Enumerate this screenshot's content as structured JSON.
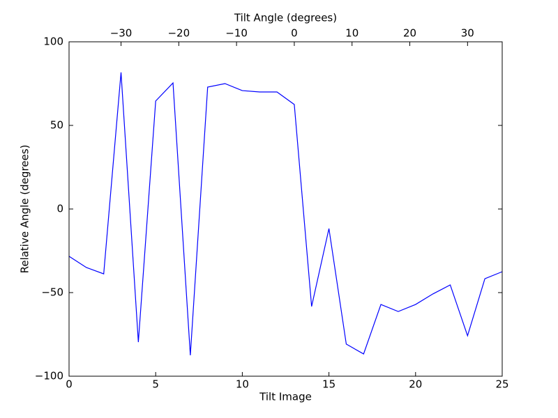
{
  "chart_data": {
    "type": "line",
    "xlabel": "Tilt Image",
    "ylabel": "Relative Angle (degrees)",
    "x2label": "Tilt Angle (degrees)",
    "x": [
      0,
      1,
      2,
      3,
      4,
      5,
      6,
      7,
      8,
      9,
      10,
      11,
      12,
      13,
      14,
      15,
      16,
      17,
      18,
      19,
      20,
      21,
      22,
      23,
      24,
      25
    ],
    "values": [
      -28.3,
      -35,
      -38.8,
      81.7,
      -79.6,
      64.6,
      75.4,
      -87.5,
      72.9,
      75,
      70.8,
      70,
      70,
      62.5,
      -58.3,
      -11.7,
      -80.8,
      -86.7,
      -57.1,
      -61.3,
      -57.1,
      -50.8,
      -45.4,
      -75.8,
      -41.7,
      -37.5
    ],
    "color": "#0000ff",
    "xlim": [
      0,
      25
    ],
    "xticks": [
      0,
      5,
      10,
      15,
      20,
      25
    ],
    "ylim": [
      -100,
      100
    ],
    "yticks": [
      {
        "value": -100,
        "label": "−100"
      },
      {
        "value": -50,
        "label": "−50"
      },
      0,
      50,
      100
    ],
    "x2lim": [
      -39,
      36
    ],
    "x2ticks": [
      {
        "value": -30,
        "label": "−30"
      },
      {
        "value": -20,
        "label": "−20"
      },
      {
        "value": -10,
        "label": "−10"
      },
      0,
      10,
      20,
      30
    ],
    "grid": false
  }
}
